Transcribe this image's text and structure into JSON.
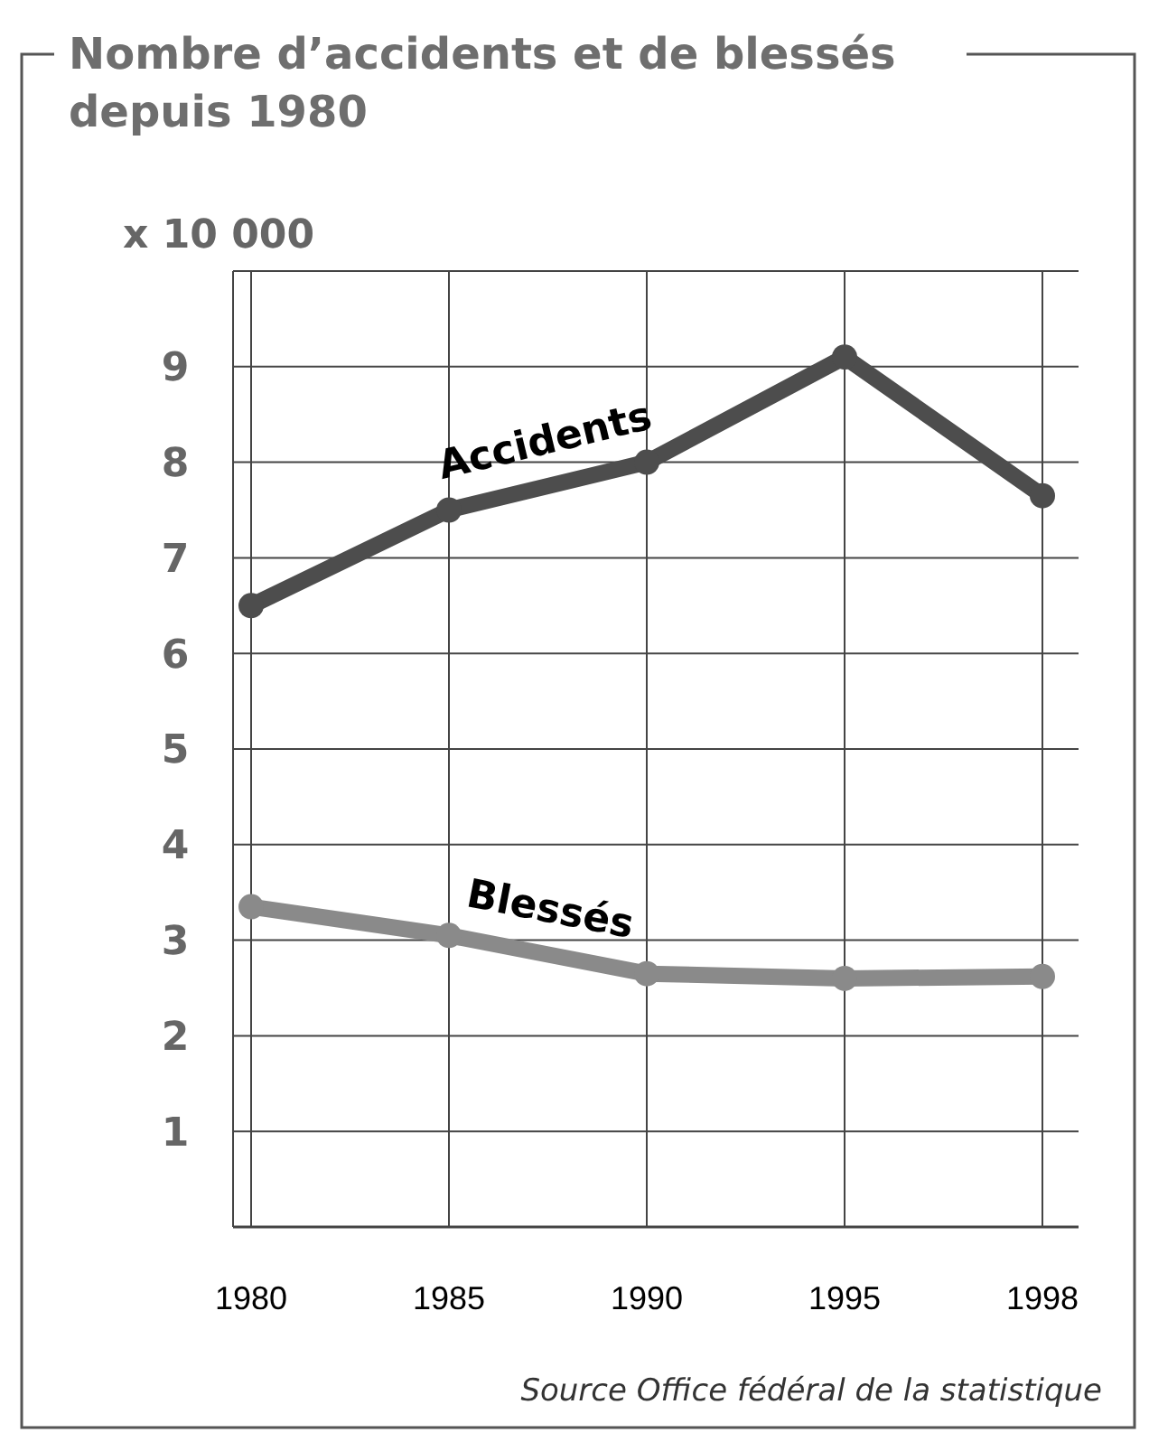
{
  "chart_data": {
    "type": "line",
    "title": "Nombre d’accidents et de blessés depuis 1980",
    "ylabel": "x 10 000",
    "categories": [
      "1980",
      "1985",
      "1990",
      "1995",
      "1998"
    ],
    "series": [
      {
        "name": "Accidents",
        "color": "#4d4d4d",
        "values": [
          6.5,
          7.5,
          8.0,
          9.1,
          7.65
        ]
      },
      {
        "name": "Blessés",
        "color": "#8a8a8a",
        "values": [
          3.35,
          3.05,
          2.65,
          2.6,
          2.62
        ]
      }
    ],
    "ylim": [
      0,
      10
    ],
    "yticks": [
      1,
      2,
      3,
      4,
      5,
      6,
      7,
      8,
      9,
      {
        "value": 10,
        "label": null
      }
    ],
    "grid": true,
    "marker": "circle",
    "line_style": "solid",
    "annotations": [
      "Source Office fédéral de la statistique"
    ]
  }
}
